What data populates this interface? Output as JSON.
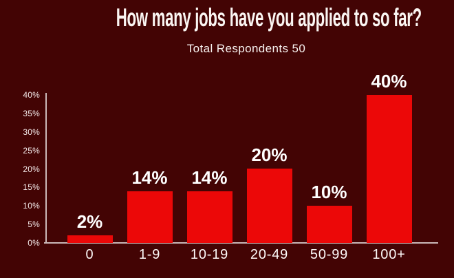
{
  "header": {
    "title": "How many jobs have you applied to so far?",
    "subtitle": "Total Respondents 50"
  },
  "chart_data": {
    "type": "bar",
    "title": "How many jobs have you applied to so far?",
    "subtitle": "Total Respondents 50",
    "total_respondents": "50",
    "categories": [
      "0",
      "1-9",
      "10-19",
      "20-49",
      "50-99",
      "100+"
    ],
    "values": [
      2,
      14,
      14,
      20,
      10,
      40
    ],
    "value_labels": [
      "2%",
      "14%",
      "14%",
      "20%",
      "10%",
      "40%"
    ],
    "xlabel": "",
    "ylabel": "",
    "ylim": [
      0,
      40
    ],
    "y_ticks": [
      "0%",
      "5%",
      "10%",
      "15%",
      "20%",
      "25%",
      "30%",
      "35%",
      "40%"
    ],
    "grid": false,
    "legend": false,
    "colors": {
      "background": "#430404",
      "bar": "#ec0808",
      "axis_line": "#cbb9b9",
      "title_text": "#faf5f2",
      "subtitle_text": "#f7f1ef",
      "tick_text": "#f3e9e9",
      "category_text": "#fdf9f8",
      "value_text": "#ffffff"
    }
  }
}
